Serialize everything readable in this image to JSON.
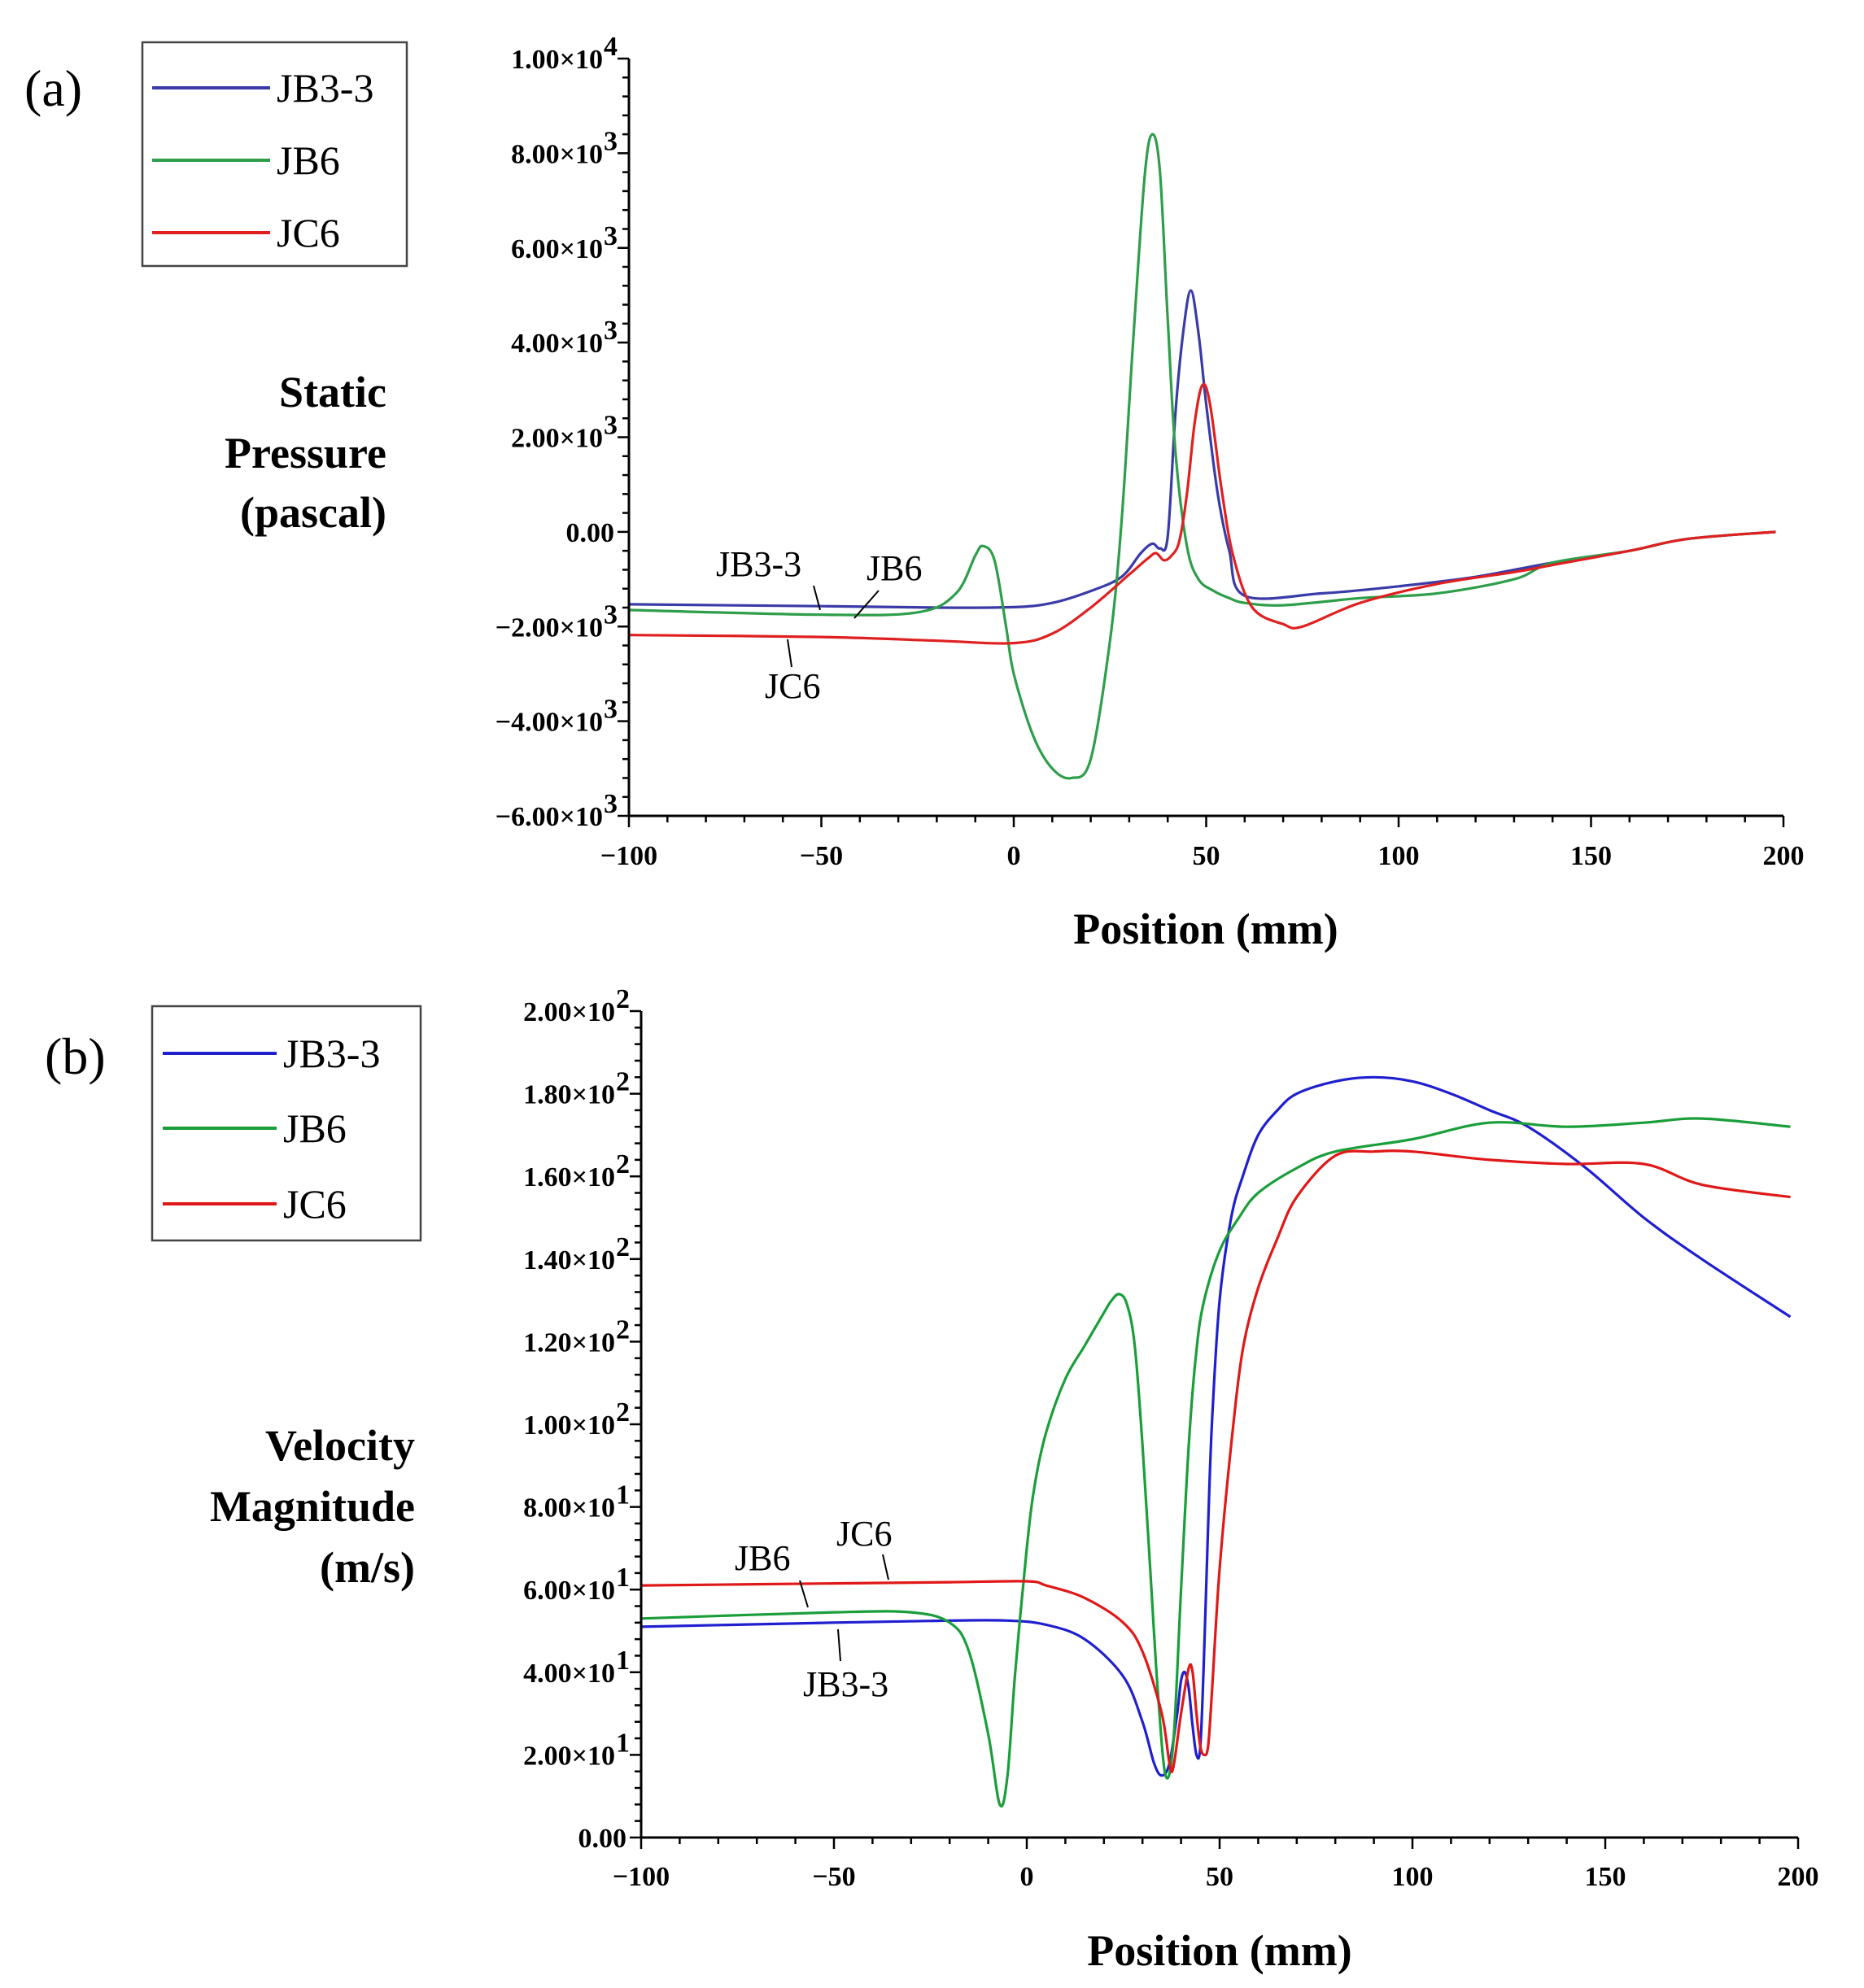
{
  "chart_data": [
    {
      "panel": "(a)",
      "type": "line",
      "xlabel": "Position (mm)",
      "ylabel": [
        "Static",
        "Pressure",
        "(pascal)"
      ],
      "xlim": [
        -100,
        200
      ],
      "ylim": [
        -6000,
        10000
      ],
      "xticks": [
        -100,
        -50,
        0,
        50,
        100,
        150,
        200
      ],
      "xtick_labels": [
        "−100",
        "−50",
        "0",
        "50",
        "100",
        "150",
        "200"
      ],
      "yticks": [
        {
          "mant": "1.00×10",
          "exp": "4",
          "value": 10000
        },
        {
          "mant": "8.00×10",
          "exp": "3",
          "value": 8000
        },
        {
          "mant": "6.00×10",
          "exp": "3",
          "value": 6000
        },
        {
          "mant": "4.00×10",
          "exp": "3",
          "value": 4000
        },
        {
          "mant": "2.00×10",
          "exp": "3",
          "value": 2000
        },
        {
          "mant": "0.00",
          "exp": "",
          "value": 0
        },
        {
          "mant": "−2.00×10",
          "exp": "3",
          "value": -2000
        },
        {
          "mant": "−4.00×10",
          "exp": "3",
          "value": -4000
        },
        {
          "mant": "−6.00×10",
          "exp": "3",
          "value": -6000
        }
      ],
      "legend": {
        "position": "top-left",
        "entries": [
          "JB3-3",
          "JB6",
          "JC6"
        ]
      },
      "series": [
        {
          "name": "JB3-3",
          "color": "#3a3aa8",
          "x": [
            -100,
            -50,
            -20,
            0,
            10,
            20,
            28,
            33,
            36,
            38,
            40,
            42,
            44,
            46,
            48,
            50,
            53,
            56,
            60,
            80,
            100,
            120,
            140,
            160,
            175,
            198
          ],
          "y": [
            -1530,
            -1570,
            -1600,
            -1590,
            -1500,
            -1250,
            -950,
            -450,
            -250,
            -350,
            -100,
            2500,
            4200,
            5100,
            4200,
            2700,
            800,
            -400,
            -1350,
            -1300,
            -1150,
            -950,
            -650,
            -400,
            -150,
            0
          ]
        },
        {
          "name": "JB6",
          "color": "#2e9e4a",
          "x": [
            -100,
            -50,
            -25,
            -15,
            -10,
            -8,
            -5,
            -2,
            0,
            5,
            10,
            15,
            20,
            25,
            28,
            31,
            34,
            36,
            38,
            40,
            42,
            45,
            48,
            52,
            56,
            60,
            70,
            90,
            110,
            130,
            140,
            160,
            175,
            198
          ],
          "y": [
            -1650,
            -1750,
            -1700,
            -1300,
            -500,
            -300,
            -600,
            -2000,
            -3000,
            -4300,
            -5000,
            -5200,
            -4800,
            -2300,
            200,
            4000,
            7500,
            8400,
            7600,
            4500,
            1700,
            -300,
            -1000,
            -1250,
            -1400,
            -1500,
            -1550,
            -1400,
            -1300,
            -1000,
            -650,
            -400,
            -150,
            0
          ]
        },
        {
          "name": "JC6",
          "color": "#e02020",
          "x": [
            -100,
            -50,
            -20,
            0,
            10,
            20,
            30,
            35,
            37,
            39,
            41,
            43,
            45,
            47,
            49,
            51,
            54,
            57,
            62,
            70,
            75,
            90,
            110,
            130,
            140,
            160,
            175,
            198
          ],
          "y": [
            -2180,
            -2220,
            -2300,
            -2350,
            -2150,
            -1600,
            -900,
            -550,
            -450,
            -600,
            -500,
            -200,
            800,
            2300,
            3100,
            2700,
            900,
            -500,
            -1600,
            -1950,
            -2000,
            -1500,
            -1100,
            -850,
            -700,
            -400,
            -150,
            0
          ]
        }
      ],
      "annotations": [
        "JB3-3",
        "JB6",
        "JC6"
      ]
    },
    {
      "panel": "(b)",
      "type": "line",
      "xlabel": "Position (mm)",
      "ylabel": [
        "Velocity",
        "Magnitude",
        "(m/s)"
      ],
      "xlim": [
        -100,
        200
      ],
      "ylim": [
        0,
        200
      ],
      "xticks": [
        -100,
        -50,
        0,
        50,
        100,
        150,
        200
      ],
      "xtick_labels": [
        "−100",
        "−50",
        "0",
        "50",
        "100",
        "150",
        "200"
      ],
      "yticks": [
        {
          "mant": "2.00×10",
          "exp": "2",
          "value": 200
        },
        {
          "mant": "1.80×10",
          "exp": "2",
          "value": 180
        },
        {
          "mant": "1.60×10",
          "exp": "2",
          "value": 160
        },
        {
          "mant": "1.40×10",
          "exp": "2",
          "value": 140
        },
        {
          "mant": "1.20×10",
          "exp": "2",
          "value": 120
        },
        {
          "mant": "1.00×10",
          "exp": "2",
          "value": 100
        },
        {
          "mant": "8.00×10",
          "exp": "1",
          "value": 80
        },
        {
          "mant": "6.00×10",
          "exp": "1",
          "value": 60
        },
        {
          "mant": "4.00×10",
          "exp": "1",
          "value": 40
        },
        {
          "mant": "2.00×10",
          "exp": "1",
          "value": 20
        },
        {
          "mant": "0.00",
          "exp": "",
          "value": 0
        }
      ],
      "legend": {
        "position": "top-left",
        "entries": [
          "JB3-3",
          "JB6",
          "JC6"
        ]
      },
      "series": [
        {
          "name": "JB3-3",
          "color": "#1f1fd0",
          "x": [
            -100,
            -50,
            -20,
            -5,
            5,
            15,
            25,
            30,
            33,
            35,
            37,
            39,
            40,
            41,
            42,
            43,
            44,
            45,
            46,
            47,
            48,
            50,
            53,
            56,
            60,
            65,
            70,
            80,
            90,
            100,
            110,
            120,
            130,
            145,
            160,
            175,
            198
          ],
          "y": [
            51,
            52,
            52.5,
            52.5,
            51.5,
            48,
            39,
            28,
            18,
            15,
            18,
            30,
            38,
            40,
            36,
            27,
            20,
            22,
            45,
            75,
            100,
            130,
            150,
            160,
            170,
            176,
            180,
            183,
            184,
            183,
            180,
            176,
            172,
            162,
            150,
            140,
            126
          ]
        },
        {
          "name": "JB6",
          "color": "#1a9e3a",
          "x": [
            -100,
            -50,
            -30,
            -20,
            -15,
            -10,
            -7,
            -5,
            -3,
            0,
            2,
            5,
            10,
            15,
            20,
            22,
            24,
            26,
            28,
            30,
            32,
            34,
            36,
            38,
            40,
            42,
            44,
            46,
            50,
            55,
            60,
            70,
            80,
            100,
            120,
            140,
            160,
            175,
            198
          ],
          "y": [
            53,
            54.5,
            54.5,
            52,
            45,
            25,
            8,
            15,
            40,
            70,
            85,
            98,
            111,
            119,
            127,
            130,
            131.5,
            129,
            119,
            95,
            65,
            35,
            15,
            23,
            60,
            95,
            118,
            130,
            142,
            150,
            156,
            162,
            166,
            169,
            173,
            172,
            173,
            174,
            172
          ]
        },
        {
          "name": "JC6",
          "color": "#e01818",
          "x": [
            -100,
            -50,
            -20,
            0,
            5,
            15,
            25,
            30,
            35,
            37,
            38,
            40,
            42,
            43,
            44,
            45,
            46,
            47,
            48,
            50,
            53,
            56,
            60,
            65,
            70,
            80,
            90,
            100,
            120,
            140,
            160,
            175,
            198
          ],
          "y": [
            61,
            61.5,
            61.8,
            62,
            61,
            58,
            52,
            45,
            30,
            18,
            17,
            30,
            41,
            40,
            30,
            22,
            20,
            22,
            35,
            65,
            95,
            118,
            133,
            145,
            155,
            165,
            166,
            166,
            164,
            163,
            163,
            158,
            155
          ]
        }
      ],
      "annotations": [
        "JB6",
        "JC6",
        "JB3-3"
      ]
    }
  ]
}
